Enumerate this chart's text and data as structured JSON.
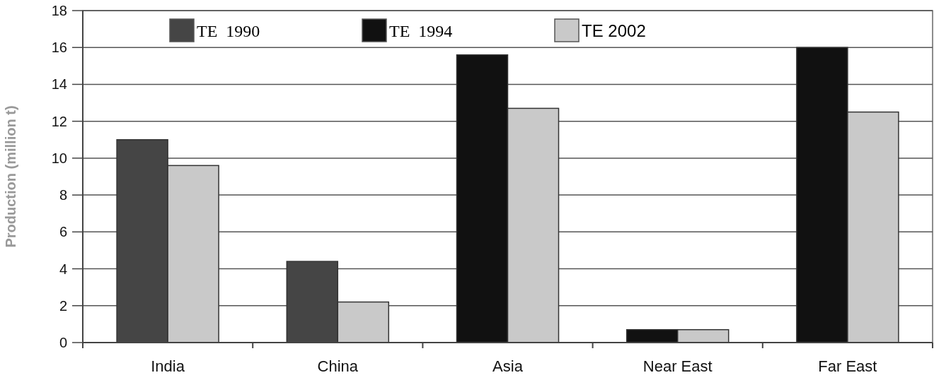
{
  "chart_data": {
    "type": "bar",
    "ylabel": "Production (million t)",
    "categories": [
      "India",
      "China",
      "Asia",
      "Near East",
      "Far East"
    ],
    "series": [
      {
        "name": "TE  1990",
        "color": "#454545",
        "values": [
          11.0,
          4.4,
          null,
          null,
          null
        ]
      },
      {
        "name": "TE  1994",
        "color": "#111111",
        "values": [
          null,
          null,
          15.6,
          0.7,
          16.0
        ]
      },
      {
        "name": "TE 2002",
        "color": "#c9c9c9",
        "values": [
          9.6,
          2.2,
          12.7,
          0.7,
          12.5
        ]
      }
    ],
    "ylim": [
      0,
      18
    ],
    "yticks": [
      0,
      2,
      4,
      6,
      8,
      10,
      12,
      14,
      16,
      18
    ],
    "grid": "y",
    "legend": "top"
  }
}
